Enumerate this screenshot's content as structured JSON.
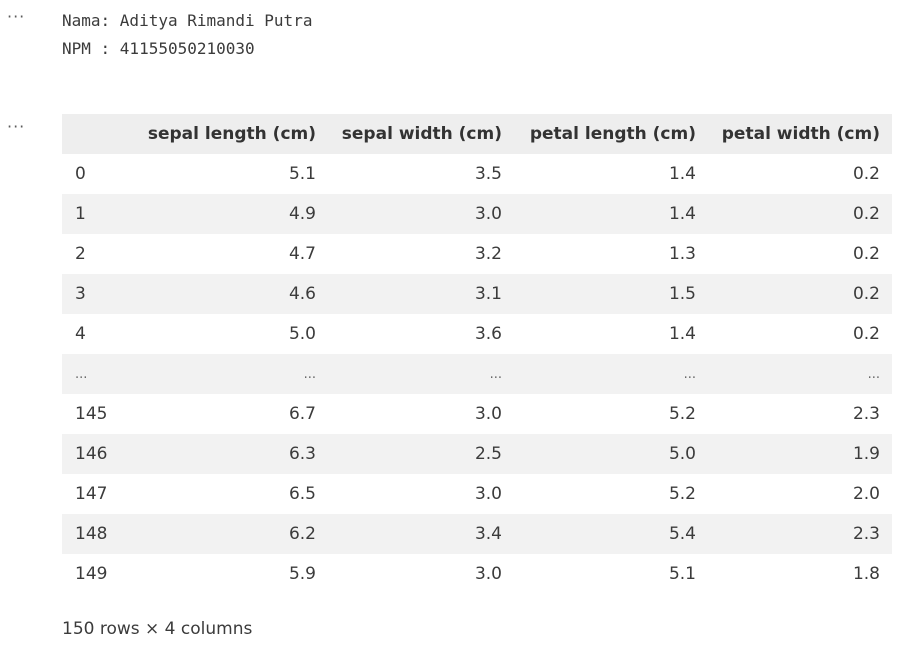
{
  "cells": [
    {
      "menu_glyph": "···",
      "stdout_lines": [
        "Nama: Aditya Rimandi Putra",
        "NPM : 41155050210030"
      ]
    },
    {
      "menu_glyph": "···"
    }
  ],
  "dataframe": {
    "columns": [
      "",
      "sepal length (cm)",
      "sepal width (cm)",
      "petal length (cm)",
      "petal width (cm)"
    ],
    "rows": [
      [
        "0",
        "5.1",
        "3.5",
        "1.4",
        "0.2"
      ],
      [
        "1",
        "4.9",
        "3.0",
        "1.4",
        "0.2"
      ],
      [
        "2",
        "4.7",
        "3.2",
        "1.3",
        "0.2"
      ],
      [
        "3",
        "4.6",
        "3.1",
        "1.5",
        "0.2"
      ],
      [
        "4",
        "5.0",
        "3.6",
        "1.4",
        "0.2"
      ],
      [
        "...",
        "...",
        "...",
        "...",
        "..."
      ],
      [
        "145",
        "6.7",
        "3.0",
        "5.2",
        "2.3"
      ],
      [
        "146",
        "6.3",
        "2.5",
        "5.0",
        "1.9"
      ],
      [
        "147",
        "6.5",
        "3.0",
        "5.2",
        "2.0"
      ],
      [
        "148",
        "6.2",
        "3.4",
        "5.4",
        "2.3"
      ],
      [
        "149",
        "5.9",
        "3.0",
        "5.1",
        "1.8"
      ]
    ],
    "shape_label": "150 rows × 4 columns"
  }
}
